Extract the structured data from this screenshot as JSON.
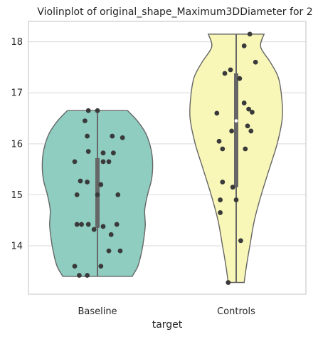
{
  "chart_data": {
    "type": "violin",
    "title": "Violinplot of original_shape_Maximum3DDiameter for 2",
    "xlabel": "target",
    "ylabel": "",
    "categories": [
      "Baseline",
      "Controls"
    ],
    "colors": [
      "#8ecdc0",
      "#f8f7b8"
    ],
    "ylim": [
      13.05,
      18.4
    ],
    "yticks": [
      14,
      15,
      16,
      17,
      18
    ],
    "grid": true,
    "violins": [
      {
        "category": "Baseline",
        "min": 13.4,
        "max": 16.65,
        "median": 15.0,
        "q1": 14.35,
        "q3": 15.72,
        "profile": [
          [
            13.4,
            0.61
          ],
          [
            13.6,
            0.71
          ],
          [
            13.85,
            0.77
          ],
          [
            14.1,
            0.81
          ],
          [
            14.4,
            0.84
          ],
          [
            14.7,
            0.83
          ],
          [
            15.0,
            0.88
          ],
          [
            15.3,
            0.95
          ],
          [
            15.6,
            0.97
          ],
          [
            15.9,
            0.94
          ],
          [
            16.2,
            0.85
          ],
          [
            16.45,
            0.7
          ],
          [
            16.65,
            0.53
          ]
        ],
        "points": [
          [
            -0.08,
            16.65
          ],
          [
            0.0,
            16.65
          ],
          [
            -0.11,
            16.45
          ],
          [
            -0.09,
            16.15
          ],
          [
            0.13,
            16.15
          ],
          [
            0.22,
            16.12
          ],
          [
            -0.08,
            15.85
          ],
          [
            0.05,
            15.82
          ],
          [
            0.14,
            15.82
          ],
          [
            -0.2,
            15.65
          ],
          [
            0.05,
            15.65
          ],
          [
            0.1,
            15.65
          ],
          [
            -0.15,
            15.27
          ],
          [
            -0.09,
            15.25
          ],
          [
            0.03,
            15.2
          ],
          [
            -0.18,
            15.0
          ],
          [
            0.0,
            15.0
          ],
          [
            0.18,
            15.0
          ],
          [
            -0.18,
            14.42
          ],
          [
            -0.14,
            14.42
          ],
          [
            -0.08,
            14.42
          ],
          [
            0.17,
            14.42
          ],
          [
            0.05,
            14.38
          ],
          [
            -0.03,
            14.32
          ],
          [
            0.12,
            14.22
          ],
          [
            0.1,
            13.9
          ],
          [
            0.2,
            13.9
          ],
          [
            -0.2,
            13.6
          ],
          [
            0.03,
            13.6
          ],
          [
            -0.16,
            13.42
          ],
          [
            -0.09,
            13.42
          ]
        ]
      },
      {
        "category": "Controls",
        "min": 13.28,
        "max": 18.15,
        "median": 16.45,
        "q1": 15.15,
        "q3": 17.38,
        "profile": [
          [
            13.28,
            0.14
          ],
          [
            13.6,
            0.18
          ],
          [
            14.0,
            0.24
          ],
          [
            14.5,
            0.32
          ],
          [
            15.0,
            0.44
          ],
          [
            15.5,
            0.58
          ],
          [
            16.0,
            0.72
          ],
          [
            16.5,
            0.81
          ],
          [
            16.9,
            0.8
          ],
          [
            17.3,
            0.74
          ],
          [
            17.6,
            0.6
          ],
          [
            17.9,
            0.43
          ],
          [
            18.15,
            0.49
          ]
        ],
        "points": [
          [
            0.12,
            18.15
          ],
          [
            0.07,
            17.92
          ],
          [
            0.17,
            17.6
          ],
          [
            -0.05,
            17.45
          ],
          [
            -0.1,
            17.38
          ],
          [
            0.03,
            17.28
          ],
          [
            0.07,
            16.8
          ],
          [
            0.11,
            16.68
          ],
          [
            0.14,
            16.62
          ],
          [
            -0.17,
            16.6
          ],
          [
            0.1,
            16.35
          ],
          [
            -0.04,
            16.25
          ],
          [
            0.13,
            16.25
          ],
          [
            -0.15,
            16.05
          ],
          [
            -0.12,
            15.9
          ],
          [
            0.08,
            15.9
          ],
          [
            -0.12,
            15.25
          ],
          [
            -0.03,
            15.15
          ],
          [
            0.0,
            14.9
          ],
          [
            -0.14,
            14.9
          ],
          [
            -0.14,
            14.65
          ],
          [
            0.04,
            14.1
          ],
          [
            -0.07,
            13.28
          ]
        ]
      }
    ]
  }
}
